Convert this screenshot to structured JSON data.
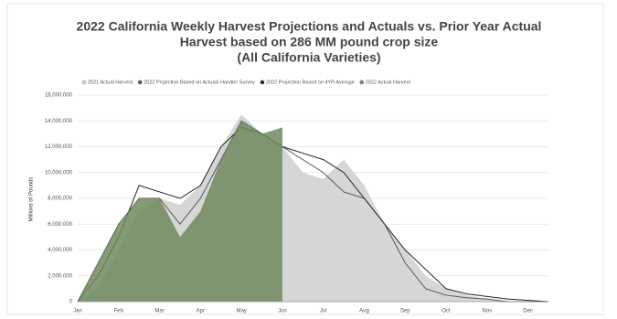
{
  "chart_data": {
    "type": "area",
    "title": [
      "2022 California Weekly Harvest Projections and Actuals vs. Prior Year Actual",
      "Harvest based on 286 MM pound crop size",
      "(All California Varieties)"
    ],
    "y_label": "Millions of Pounds",
    "categories": [
      "Jan",
      null,
      "Feb",
      null,
      "Mar",
      null,
      "Apr",
      null,
      "May",
      null,
      "Jun",
      null,
      "Jul",
      null,
      "Aug",
      null,
      "Sep",
      null,
      "Oct",
      null,
      "Nov",
      null,
      "Dec",
      null
    ],
    "series": [
      {
        "name": "2021 Actual Harvest",
        "mark": "area",
        "color": "#cfcfcf",
        "values": [
          0,
          1000000,
          4000000,
          7000000,
          8000000,
          7500000,
          9000000,
          12000000,
          14500000,
          13000000,
          12000000,
          10000000,
          9500000,
          11000000,
          9000000,
          6000000,
          4000000,
          2000000,
          1000000,
          500000,
          200000,
          0,
          0,
          0
        ]
      },
      {
        "name": "2022 Projection Based on Actuals Handler Survey",
        "mark": "line",
        "color": "#555555",
        "values": [
          0,
          3000000,
          6000000,
          8000000,
          8000000,
          6000000,
          8000000,
          11000000,
          14000000,
          13000000,
          12000000,
          11000000,
          10000000,
          8500000,
          8000000,
          6000000,
          3000000,
          1000000,
          500000,
          300000,
          200000,
          0,
          0,
          0
        ]
      },
      {
        "name": "2022 Projection Based on 4YR Average",
        "mark": "line",
        "color": "#222222",
        "values": [
          0,
          2000000,
          5000000,
          9000000,
          8500000,
          8000000,
          9000000,
          12000000,
          13500000,
          13000000,
          12000000,
          11500000,
          11000000,
          10000000,
          8000000,
          6000000,
          4000000,
          2500000,
          1000000,
          600000,
          400000,
          200000,
          100000,
          0
        ]
      },
      {
        "name": "2022 Actual Harvest",
        "mark": "area",
        "color": "#6f8a5e",
        "values": [
          0,
          3000000,
          6000000,
          8000000,
          8000000,
          5000000,
          7000000,
          11000000,
          14000000,
          13000000,
          13500000,
          null,
          null,
          null,
          null,
          null,
          null,
          null,
          null,
          null,
          null,
          null,
          null,
          null
        ]
      }
    ],
    "ylim": [
      0,
      16000000
    ],
    "yticks": [
      {
        "value": 0,
        "label": "0"
      },
      {
        "value": 2000000,
        "label": "2,000,000"
      },
      {
        "value": 4000000,
        "label": "4,000,000"
      },
      {
        "value": 6000000,
        "label": "6,000,000"
      },
      {
        "value": 8000000,
        "label": "8,000,000"
      },
      {
        "value": 10000000,
        "label": "10,000,000"
      },
      {
        "value": 12000000,
        "label": "12,000,000"
      },
      {
        "value": 14000000,
        "label": "14,000,000"
      },
      {
        "value": 16000000,
        "label": "16,000,000"
      }
    ],
    "grid": true
  }
}
